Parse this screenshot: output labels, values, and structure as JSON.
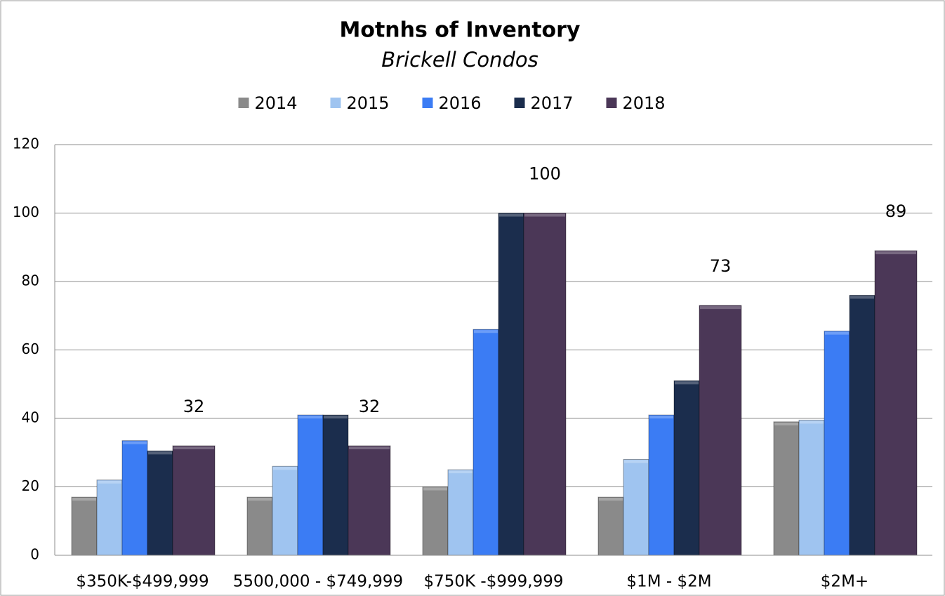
{
  "chart_data": {
    "type": "bar",
    "title": "Motnhs of Inventory",
    "subtitle": "Brickell Condos",
    "categories": [
      "$350K-$499,999",
      "5500,000 - $749,999",
      "$750K -$999,999",
      "$1M - $2M",
      "$2M+"
    ],
    "series": [
      {
        "name": "2014",
        "color": "#8a8a8a",
        "values": [
          17,
          17,
          20,
          17,
          39
        ]
      },
      {
        "name": "2015",
        "color": "#9fc4f0",
        "values": [
          22,
          26,
          25,
          28,
          39.5
        ]
      },
      {
        "name": "2016",
        "color": "#3b7cf4",
        "values": [
          33.5,
          41,
          66,
          41,
          65.5
        ]
      },
      {
        "name": "2017",
        "color": "#1b2d4d",
        "values": [
          30.5,
          41,
          100,
          51,
          76
        ]
      },
      {
        "name": "2018",
        "color": "#4b3757",
        "values": [
          32,
          32,
          100,
          73,
          89
        ],
        "data_labels": true
      }
    ],
    "ylim": [
      0,
      120
    ],
    "yticks": [
      0,
      20,
      40,
      60,
      80,
      100,
      120
    ],
    "grid": true,
    "legend": "top"
  }
}
